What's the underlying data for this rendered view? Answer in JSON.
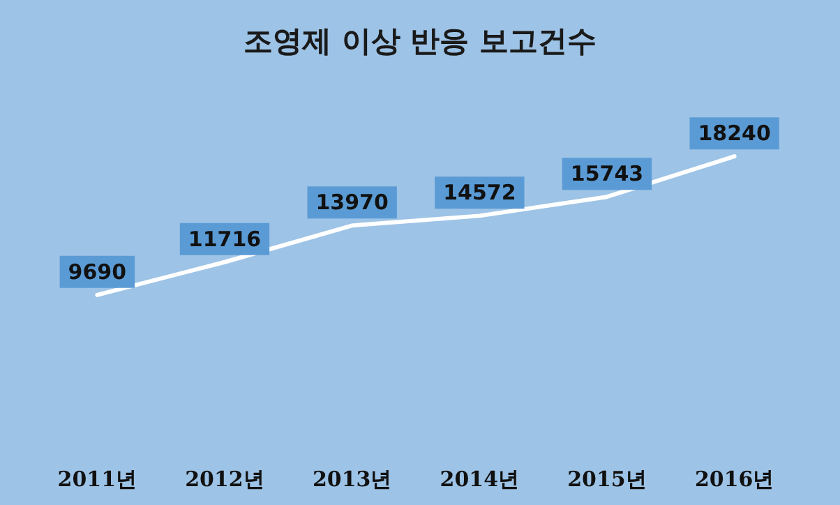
{
  "chart_data": {
    "type": "line",
    "title": "조영제 이상 반응 보고건수",
    "categories": [
      "2011년",
      "2012년",
      "2013년",
      "2014년",
      "2015년",
      "2016년"
    ],
    "series": [
      {
        "color": "#ffffff",
        "values": [
          9690,
          11716,
          13970,
          14572,
          15743,
          18240
        ]
      }
    ],
    "data_labels": true,
    "grid": false,
    "line_style": "solid"
  }
}
